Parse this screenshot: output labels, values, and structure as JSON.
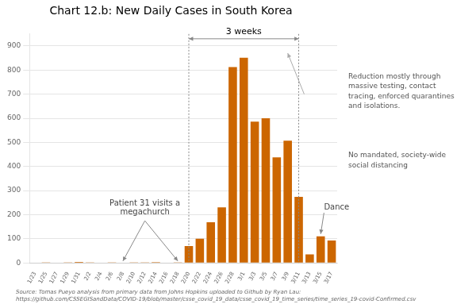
{
  "chart_data": {
    "type": "bar",
    "title": "Chart 12.b: New Daily Cases in South Korea",
    "categories": [
      "1/23",
      "1/25",
      "1/27",
      "1/29",
      "1/31",
      "2/2",
      "2/4",
      "2/6",
      "2/8",
      "2/10",
      "2/12",
      "2/14",
      "2/16",
      "2/18",
      "2/20",
      "2/22",
      "2/24",
      "2/26",
      "2/28",
      "3/1",
      "3/3",
      "3/5",
      "3/7",
      "3/9",
      "3/11",
      "3/13",
      "3/15",
      "3/17"
    ],
    "values": [
      1,
      2,
      1,
      2,
      4,
      2,
      1,
      2,
      1,
      2,
      2,
      3,
      1,
      2,
      70,
      100,
      169,
      230,
      813,
      851,
      586,
      600,
      438,
      507,
      274,
      35,
      110,
      93
    ],
    "color": "#CC6600",
    "ylim": [
      0,
      950
    ],
    "yticks": [
      0,
      100,
      200,
      300,
      400,
      500,
      600,
      700,
      800,
      900
    ],
    "grid": true,
    "span_annotation": {
      "text": "3 weeks",
      "from": "2/20",
      "to": "3/11"
    },
    "event_annotation": {
      "text": "Patient 31 visits a\nmegachurch",
      "from": "2/8",
      "to": "2/18"
    },
    "point_annotation": {
      "text": "Dance",
      "at": "3/15"
    },
    "side_notes": [
      "Reduction mostly through\nmassive testing, contact\ntracing, enforced quarantines\nand isolations.",
      "No mandated, society-wide\nsocial distancing"
    ],
    "source": "Source: Tomas Pueyo analysis from primary data from Johns Hopkins uploaded to Github by Ryan Lau:\nhttps://github.com/CSSEGISandData/COVID-19/blob/master/csse_covid_19_data/csse_covid_19_time_series/time_series_19-covid-Confirmed.csv"
  }
}
